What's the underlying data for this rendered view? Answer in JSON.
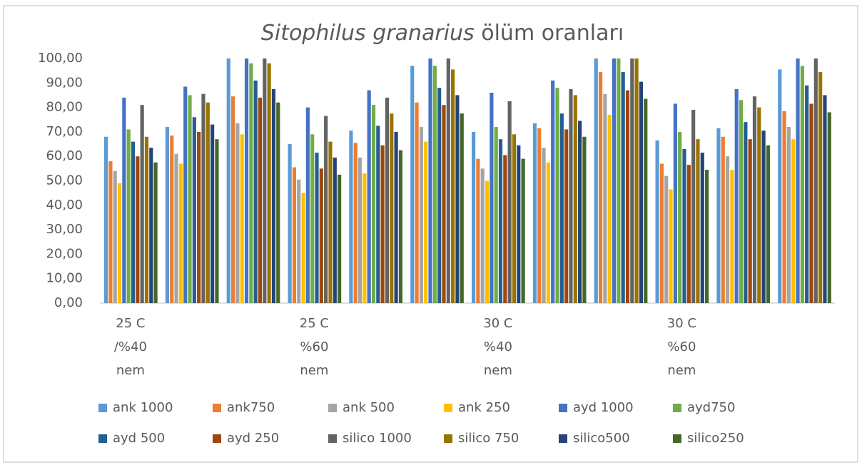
{
  "chart_data": {
    "type": "bar",
    "title": [
      "Sitophilus granarius",
      "ölüm oranları"
    ],
    "categories": [
      "25 C /%40 nem",
      null,
      null,
      "25 C %60 nem",
      null,
      null,
      "30 C %40 nem",
      null,
      null,
      "30 C %60 nem",
      null,
      null
    ],
    "ylim": [
      0,
      100
    ],
    "yticks": [
      {
        "value": 0,
        "label": "0,00"
      },
      {
        "value": 10,
        "label": "10,00"
      },
      {
        "value": 20,
        "label": "20,00"
      },
      {
        "value": 30,
        "label": "30,00"
      },
      {
        "value": 40,
        "label": "40,00"
      },
      {
        "value": 50,
        "label": "50,00"
      },
      {
        "value": 60,
        "label": "60,00"
      },
      {
        "value": 70,
        "label": "70,00"
      },
      {
        "value": 80,
        "label": "80,00"
      },
      {
        "value": 90,
        "label": "90,00"
      },
      {
        "value": 100,
        "label": "100,00"
      }
    ],
    "grid": false,
    "legend": "bottom",
    "series": [
      {
        "name": "ank 1000",
        "color": "#5b9bd5",
        "values": [
          68,
          72,
          100,
          65,
          70.5,
          97,
          70,
          73.5,
          100,
          66.5,
          71.5,
          95.5
        ]
      },
      {
        "name": "ank750",
        "color": "#ed7d31",
        "values": [
          58,
          68.5,
          84.5,
          55.5,
          65.5,
          82,
          59,
          71.5,
          94.5,
          57,
          68,
          78.5
        ]
      },
      {
        "name": "ank 500",
        "color": "#a5a5a5",
        "values": [
          54,
          61,
          73.5,
          50.5,
          59.5,
          72,
          55,
          63.5,
          85.5,
          52,
          60,
          72
        ]
      },
      {
        "name": "ank 250",
        "color": "#ffc000",
        "values": [
          49,
          57,
          69,
          45,
          53,
          66,
          50,
          57.5,
          77,
          46.5,
          54.5,
          67
        ]
      },
      {
        "name": "ayd 1000",
        "color": "#4472c4",
        "values": [
          84,
          88.5,
          100,
          80,
          87,
          100,
          86,
          91,
          100,
          81.5,
          87.5,
          100
        ]
      },
      {
        "name": "ayd750",
        "color": "#70ad47",
        "values": [
          71,
          85,
          98,
          69,
          81,
          97,
          72,
          88,
          100,
          70,
          83,
          97
        ]
      },
      {
        "name": "ayd 500",
        "color": "#255e91",
        "values": [
          66,
          76,
          91,
          61.5,
          72.5,
          88,
          67,
          77.5,
          94.5,
          63,
          74,
          89
        ]
      },
      {
        "name": "ayd 250",
        "color": "#9e480e",
        "values": [
          60,
          70,
          84,
          55,
          64.5,
          81,
          60.5,
          71,
          87,
          56.5,
          67,
          81.5
        ]
      },
      {
        "name": "silico 1000",
        "color": "#636363",
        "values": [
          81,
          85.5,
          100,
          76.5,
          84,
          100,
          82.5,
          87.5,
          100,
          79,
          84.5,
          100
        ]
      },
      {
        "name": "silico 750",
        "color": "#997300",
        "values": [
          68,
          82,
          98,
          66,
          77.5,
          95.5,
          69,
          85,
          100,
          67,
          80,
          94.5
        ]
      },
      {
        "name": "silico500",
        "color": "#264478",
        "values": [
          63.5,
          73,
          87.5,
          59.5,
          70,
          85,
          64.5,
          74.5,
          90.5,
          61.5,
          70.5,
          85
        ]
      },
      {
        "name": "silico250",
        "color": "#43682b",
        "values": [
          57.5,
          67,
          82,
          52.5,
          62.5,
          77.5,
          59,
          68,
          83.5,
          54.5,
          64.5,
          78
        ]
      }
    ]
  }
}
